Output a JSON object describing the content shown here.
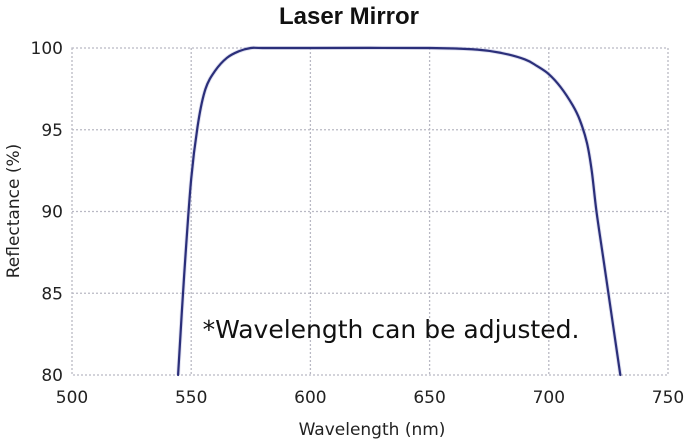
{
  "chart_data": {
    "type": "line",
    "title": "Laser Mirror",
    "xlabel": "Wavelength (nm)",
    "ylabel": "Reflectance (%)",
    "xlim": [
      500,
      750
    ],
    "ylim": [
      80,
      100
    ],
    "xticks": [
      500,
      550,
      600,
      650,
      700,
      750
    ],
    "yticks": [
      80,
      85,
      90,
      95,
      100
    ],
    "grid": true,
    "annotations": [
      {
        "text": "*Wavelength can be adjusted."
      }
    ],
    "series": [
      {
        "color": "#2b2f7a",
        "x": [
          544.5,
          547,
          550,
          553,
          556,
          560,
          565,
          570,
          575,
          580,
          600,
          650,
          670,
          680,
          690,
          695,
          700,
          705,
          710,
          713,
          716,
          718,
          720,
          723,
          726,
          728,
          730
        ],
        "y": [
          80,
          86,
          92,
          95.5,
          97.5,
          98.6,
          99.4,
          99.8,
          100,
          100,
          100,
          100,
          99.9,
          99.7,
          99.3,
          98.9,
          98.4,
          97.6,
          96.5,
          95.6,
          94.2,
          92.5,
          90,
          87,
          84,
          82,
          80
        ]
      }
    ]
  }
}
